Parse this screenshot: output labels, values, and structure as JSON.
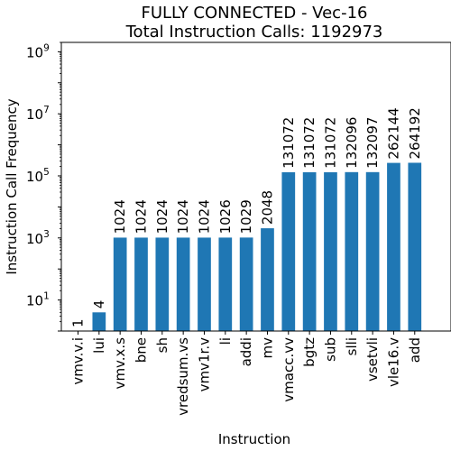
{
  "chart_data": {
    "type": "bar",
    "title": "FULLY CONNECTED - Vec-16",
    "subtitle": "Total Instruction Calls: 1192973",
    "xlabel": "Instruction",
    "ylabel": "Instruction Call Frequency",
    "yscale": "log",
    "ylim": [
      1,
      2000000000
    ],
    "yticks": [
      {
        "value": 10,
        "base": "10",
        "exp": "1"
      },
      {
        "value": 1000,
        "base": "10",
        "exp": "3"
      },
      {
        "value": 100000,
        "base": "10",
        "exp": "5"
      },
      {
        "value": 10000000,
        "base": "10",
        "exp": "7"
      },
      {
        "value": 1000000000,
        "base": "10",
        "exp": "9"
      }
    ],
    "grid": false,
    "bar_color": "#1f77b4",
    "categories": [
      "vmv.v.i",
      "lui",
      "vmv.x.s",
      "bne",
      "sh",
      "vredsum.vs",
      "vmv1r.v",
      "li",
      "addi",
      "mv",
      "vmacc.vv",
      "bgtz",
      "sub",
      "slli",
      "vsetvli",
      "vle16.v",
      "add"
    ],
    "values": [
      1,
      4,
      1024,
      1024,
      1024,
      1024,
      1024,
      1026,
      1029,
      2048,
      131072,
      131072,
      131072,
      132096,
      132097,
      262144,
      264192
    ],
    "data_labels": [
      "1",
      "4",
      "1024",
      "1024",
      "1024",
      "1024",
      "1024",
      "1026",
      "1029",
      "2048",
      "131072",
      "131072",
      "131072",
      "132096",
      "132097",
      "262144",
      "264192"
    ]
  }
}
